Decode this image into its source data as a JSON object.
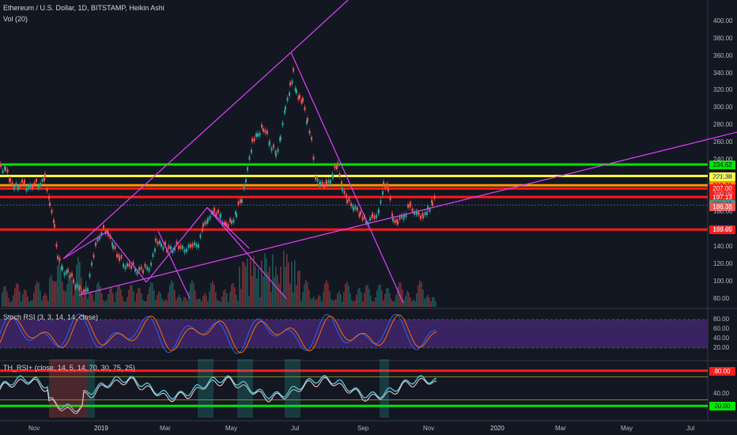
{
  "header": {
    "symbol": "Ethereum / U.S. Dollar, 1D, BITSTAMP, Heikin Ashi",
    "volume": "Vol (20)",
    "stoch": "Stoch RSI (3, 3, 14, 14, close)",
    "rsi": "TH_RSI+ (close, 14, 5, 14, 70, 30, 75, 25)"
  },
  "colors": {
    "background": "#131722",
    "up": "#26a69a",
    "down": "#ef5350",
    "trendline": "#e040fb",
    "level_green": "#00e600",
    "level_yellow": "#ffff33",
    "level_orange": "#ff9800",
    "level_red": "#ff1a1a",
    "stoch_band": "#4a2a7a"
  },
  "chart_data": [
    {
      "type": "candlestick",
      "title": "Ethereum / U.S. Dollar, 1D, BITSTAMP, Heikin Ashi",
      "x_labels": [
        "Nov",
        "2019",
        "Mar",
        "May",
        "Jul",
        "Sep",
        "Nov",
        "2020",
        "Mar",
        "May",
        "Jul"
      ],
      "y_ticks": [
        80,
        100,
        120,
        140,
        160,
        180,
        200,
        220,
        240,
        260,
        280,
        300,
        320,
        340,
        360,
        380,
        400
      ],
      "ylim": [
        75,
        408
      ],
      "price_labels": [
        {
          "text": "234.62",
          "value": 234.62,
          "color": "#00e600"
        },
        {
          "text": "221.38",
          "value": 221.38,
          "color": "#ffff33"
        },
        {
          "text": "210.71",
          "value": 210.71,
          "color": "#ff9800"
        },
        {
          "text": "207.00",
          "value": 207.0,
          "color": "#ff1a1a"
        },
        {
          "text": "197.13",
          "value": 197.13,
          "color": "#ff1a1a"
        },
        {
          "text": "188.60",
          "value": 188.6,
          "color": "#26a69a"
        },
        {
          "text": "186.38",
          "value": 186.38,
          "color": "#ef5350"
        },
        {
          "text": "159.65",
          "value": 159.65,
          "color": "#ff1a1a"
        }
      ],
      "price_path": [
        [
          0,
          232
        ],
        [
          6,
          230
        ],
        [
          12,
          212
        ],
        [
          22,
          210
        ],
        [
          30,
          211
        ],
        [
          40,
          209
        ],
        [
          50,
          214
        ],
        [
          56,
          218
        ],
        [
          62,
          190
        ],
        [
          68,
          160
        ],
        [
          72,
          125
        ],
        [
          78,
          115
        ],
        [
          85,
          110
        ],
        [
          92,
          100
        ],
        [
          100,
          90
        ],
        [
          105,
          85
        ],
        [
          110,
          95
        ],
        [
          115,
          120
        ],
        [
          120,
          140
        ],
        [
          125,
          155
        ],
        [
          130,
          158
        ],
        [
          136,
          155
        ],
        [
          142,
          140
        ],
        [
          150,
          125
        ],
        [
          160,
          118
        ],
        [
          170,
          115
        ],
        [
          180,
          112
        ],
        [
          190,
          120
        ],
        [
          196,
          145
        ],
        [
          203,
          145
        ],
        [
          210,
          136
        ],
        [
          220,
          140
        ],
        [
          230,
          138
        ],
        [
          240,
          140
        ],
        [
          250,
          145
        ],
        [
          256,
          160
        ],
        [
          262,
          175
        ],
        [
          270,
          180
        ],
        [
          278,
          175
        ],
        [
          285,
          162
        ],
        [
          292,
          170
        ],
        [
          298,
          180
        ],
        [
          305,
          195
        ],
        [
          312,
          230
        ],
        [
          318,
          260
        ],
        [
          325,
          272
        ],
        [
          332,
          275
        ],
        [
          340,
          262
        ],
        [
          348,
          245
        ],
        [
          354,
          270
        ],
        [
          360,
          300
        ],
        [
          366,
          325
        ],
        [
          370,
          340
        ],
        [
          374,
          318
        ],
        [
          378,
          308
        ],
        [
          382,
          305
        ],
        [
          388,
          285
        ],
        [
          393,
          260
        ],
        [
          398,
          220
        ],
        [
          404,
          212
        ],
        [
          412,
          210
        ],
        [
          420,
          225
        ],
        [
          426,
          230
        ],
        [
          432,
          210
        ],
        [
          438,
          190
        ],
        [
          446,
          188
        ],
        [
          455,
          175
        ],
        [
          462,
          170
        ],
        [
          470,
          172
        ],
        [
          478,
          180
        ],
        [
          484,
          212
        ],
        [
          490,
          205
        ],
        [
          496,
          170
        ],
        [
          502,
          168
        ],
        [
          510,
          178
        ],
        [
          518,
          185
        ],
        [
          526,
          178
        ],
        [
          534,
          172
        ],
        [
          540,
          185
        ],
        [
          546,
          190
        ],
        [
          551,
          196
        ]
      ],
      "horizontal_levels": [
        234.62,
        221.38,
        210.71,
        207.0,
        197.13,
        159.65
      ]
    },
    {
      "type": "line",
      "title": "Stoch RSI (3, 3, 14, 14, close)",
      "y_ticks": [
        20.0,
        40.0,
        60.0,
        80.0
      ],
      "band": [
        20,
        80
      ]
    },
    {
      "type": "line",
      "title": "TH_RSI+ (close, 14, 5, 14, 70, 30, 75, 25)",
      "y_ticks": [
        20.0,
        40.0,
        60.0,
        80.0
      ],
      "levels": [
        {
          "value": 80.0,
          "color": "#ff1a1a"
        },
        {
          "value": 20.0,
          "color": "#00e600"
        }
      ]
    }
  ]
}
